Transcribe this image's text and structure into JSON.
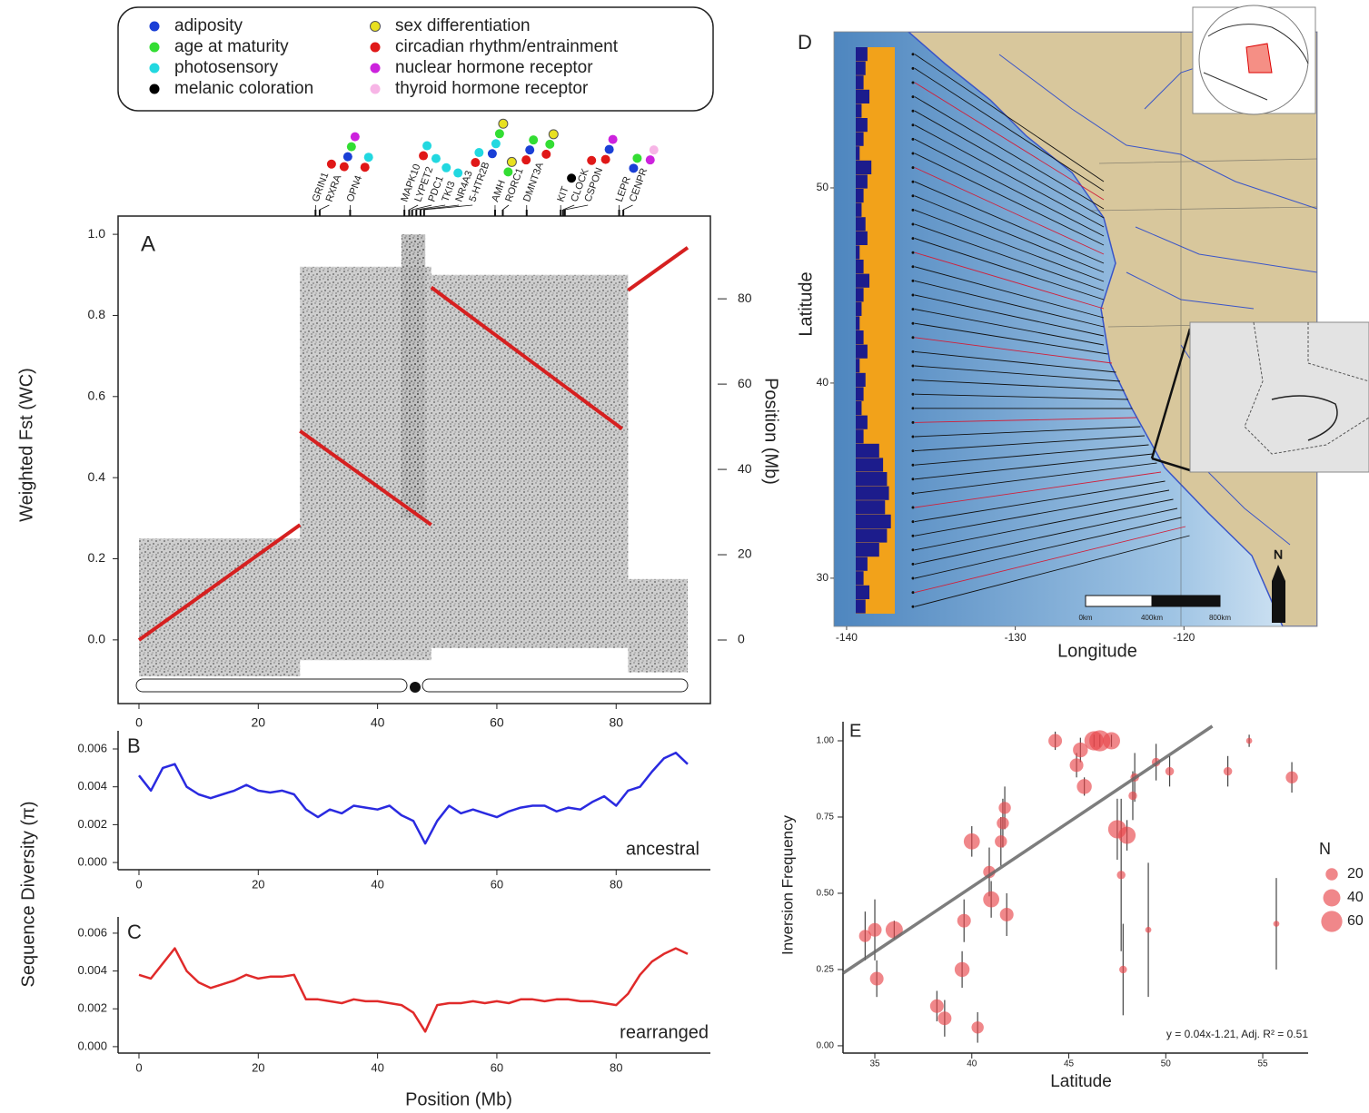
{
  "chart_data": [
    {
      "type": "scatter",
      "label": "A",
      "ylabel": "Weighted Fst (WC)",
      "y2label": "Position (Mb)",
      "xlim": [
        -3.5,
        95.8
      ],
      "xticks": [
        0,
        20,
        40,
        60,
        80
      ],
      "ylim": [
        -0.157,
        1.045
      ],
      "yticks": [
        {
          "value": 0,
          "label": "0.0"
        },
        0.2,
        0.4,
        0.6,
        0.8,
        {
          "value": 1,
          "label": "1.0"
        }
      ],
      "y2lim": [
        -14.9,
        99.4
      ],
      "y2ticks": [
        0,
        20,
        40,
        60,
        80
      ],
      "legend": [
        {
          "name": "adiposity",
          "color": "#1a3fd6"
        },
        {
          "name": "age at maturity",
          "color": "#33dd33"
        },
        {
          "name": "photosensory",
          "color": "#22d8e0"
        },
        {
          "name": "melanic coloration",
          "color": "#000000"
        },
        {
          "name": "sex differentiation",
          "color": "#e8e020"
        },
        {
          "name": "circadian rhythm/entrainment",
          "color": "#e01818"
        },
        {
          "name": "nuclear hormone receptor",
          "color": "#cc22dd"
        },
        {
          "name": "thyroid hormone receptor",
          "color": "#f7b5e6"
        }
      ],
      "genes": [
        {
          "name": "GRIN1",
          "x": 29.6,
          "colors": [
            "#e01818"
          ]
        },
        {
          "name": "RXRA",
          "x": 30.3,
          "colors": [
            "#e01818",
            "#1a3fd6",
            "#33dd33",
            "#cc22dd"
          ]
        },
        {
          "name": "OPN4",
          "x": 35.4,
          "colors": [
            "#e01818",
            "#22d8e0"
          ]
        },
        {
          "name": "MAPK10",
          "x": 44.5,
          "colors": [
            "#e01818",
            "#22d8e0"
          ]
        },
        {
          "name": "LYPET2",
          "x": 45.3,
          "colors": [
            "#22d8e0"
          ]
        },
        {
          "name": "PDC1",
          "x": 45.8,
          "colors": [
            "#22d8e0"
          ]
        },
        {
          "name": "TKI3",
          "x": 46.5,
          "colors": [
            "#22d8e0"
          ]
        },
        {
          "name": "NR4A3",
          "x": 47.2,
          "colors": [
            "#e01818",
            "#22d8e0"
          ]
        },
        {
          "name": "5-HTR2B",
          "x": 47.8,
          "colors": [
            "#1a3fd6",
            "#22d8e0",
            "#33dd33",
            "#e8e020"
          ]
        },
        {
          "name": "AMH",
          "x": 59.7,
          "colors": [
            "#33dd33",
            "#e8e020"
          ]
        },
        {
          "name": "RORC1",
          "x": 61,
          "colors": [
            "#e01818",
            "#1a3fd6",
            "#33dd33"
          ]
        },
        {
          "name": "DMNT3A",
          "x": 65,
          "colors": [
            "#e01818",
            "#33dd33",
            "#e8e020"
          ]
        },
        {
          "name": "KIT",
          "x": 70.7,
          "colors": [
            "#000000"
          ]
        },
        {
          "name": "CLOCK",
          "x": 71.1,
          "colors": [
            "#e01818"
          ]
        },
        {
          "name": "CSPON",
          "x": 71.4,
          "colors": [
            "#e01818",
            "#1a3fd6",
            "#cc22dd"
          ]
        },
        {
          "name": "LEPR",
          "x": 80.5,
          "colors": [
            "#1a3fd6",
            "#33dd33"
          ]
        },
        {
          "name": "CENPR",
          "x": 81.2,
          "colors": [
            "#cc22dd",
            "#f7b5e6"
          ]
        }
      ],
      "fst_clouds": [
        {
          "x": [
            0,
            27
          ],
          "range": [
            -0.09,
            0.25
          ]
        },
        {
          "x": [
            27,
            49
          ],
          "range": [
            -0.05,
            0.92
          ]
        },
        {
          "x": [
            44,
            48
          ],
          "range": [
            0.3,
            1.0
          ]
        },
        {
          "x": [
            49,
            82
          ],
          "range": [
            -0.02,
            0.9
          ]
        },
        {
          "x": [
            82,
            92
          ],
          "range": [
            -0.08,
            0.15
          ]
        }
      ],
      "series": [
        {
          "axis": "y2",
          "color": "#d62020",
          "x": [
            0,
            27,
            null,
            27,
            49,
            null,
            49,
            81,
            null,
            82,
            92
          ],
          "values": [
            0,
            27,
            null,
            49,
            27,
            null,
            82.7,
            49.5,
            null,
            82,
            92
          ]
        }
      ]
    },
    {
      "type": "line",
      "label": "B",
      "ylabel": "Sequence Diversity (π)",
      "annotation": "ancestral",
      "xlim": [
        -3.5,
        95.8
      ],
      "xticks": [
        0,
        20,
        40,
        60,
        80
      ],
      "ylim": [
        -0.00038,
        0.00696
      ],
      "yticks": [
        {
          "value": 0,
          "label": "0.000"
        },
        {
          "value": 0.002,
          "label": "0.002"
        },
        {
          "value": 0.004,
          "label": "0.004"
        },
        {
          "value": 0.006,
          "label": "0.006"
        }
      ],
      "x": [
        0,
        2,
        4,
        6,
        8,
        10,
        12,
        14,
        16,
        18,
        20,
        22,
        24,
        26,
        28,
        30,
        32,
        34,
        36,
        38,
        40,
        42,
        44,
        46,
        48,
        50,
        52,
        54,
        56,
        58,
        60,
        62,
        64,
        66,
        68,
        70,
        72,
        74,
        76,
        78,
        80,
        82,
        84,
        86,
        88,
        90,
        92
      ],
      "series": [
        {
          "color": "#2a2ae0",
          "values": [
            0.0046,
            0.0038,
            0.005,
            0.0052,
            0.004,
            0.0036,
            0.0034,
            0.0036,
            0.0038,
            0.0041,
            0.0038,
            0.0037,
            0.0038,
            0.0036,
            0.0028,
            0.0024,
            0.0028,
            0.0026,
            0.003,
            0.0029,
            0.0028,
            0.003,
            0.0025,
            0.0022,
            0.001,
            0.0022,
            0.003,
            0.0026,
            0.0028,
            0.0026,
            0.0024,
            0.0027,
            0.0029,
            0.003,
            0.003,
            0.0027,
            0.0029,
            0.0028,
            0.0032,
            0.0035,
            0.003,
            0.0038,
            0.004,
            0.0048,
            0.0055,
            0.0058,
            0.0052
          ]
        }
      ]
    },
    {
      "type": "line",
      "label": "C",
      "xlabel": "Position (Mb)",
      "annotation": "rearranged",
      "xlim": [
        -3.5,
        95.8
      ],
      "xticks": [
        0,
        20,
        40,
        60,
        80
      ],
      "ylim": [
        -0.00034,
        0.00686
      ],
      "yticks": [
        {
          "value": 0,
          "label": "0.000"
        },
        {
          "value": 0.002,
          "label": "0.002"
        },
        {
          "value": 0.004,
          "label": "0.004"
        },
        {
          "value": 0.006,
          "label": "0.006"
        }
      ],
      "x": [
        0,
        2,
        4,
        6,
        8,
        10,
        12,
        14,
        16,
        18,
        20,
        22,
        24,
        26,
        28,
        30,
        32,
        34,
        36,
        38,
        40,
        42,
        44,
        46,
        48,
        50,
        52,
        54,
        56,
        58,
        60,
        62,
        64,
        66,
        68,
        70,
        72,
        74,
        76,
        78,
        80,
        82,
        84,
        86,
        88,
        90,
        92
      ],
      "series": [
        {
          "color": "#e02a2a",
          "values": [
            0.0038,
            0.0036,
            0.0044,
            0.0052,
            0.004,
            0.0034,
            0.0031,
            0.0033,
            0.0035,
            0.0038,
            0.0036,
            0.0037,
            0.0037,
            0.0038,
            0.0025,
            0.0025,
            0.0024,
            0.0023,
            0.0025,
            0.0024,
            0.0024,
            0.0023,
            0.0022,
            0.0018,
            0.0008,
            0.0022,
            0.0023,
            0.0023,
            0.0024,
            0.0023,
            0.0024,
            0.0023,
            0.0025,
            0.0025,
            0.0024,
            0.0025,
            0.0025,
            0.0024,
            0.0024,
            0.0023,
            0.0022,
            0.0028,
            0.0038,
            0.0045,
            0.0049,
            0.0052,
            0.0049
          ]
        }
      ]
    },
    {
      "type": "map",
      "label": "D",
      "xlabel": "Longitude",
      "ylabel": "Latitude",
      "xlim": [
        -140.75,
        -112.1
      ],
      "xticks": [
        -140,
        -130,
        -120
      ],
      "ylim": [
        27.53,
        58
      ],
      "yticks": [
        30,
        40,
        50
      ],
      "structure": {
        "colors": [
          "#f2a21a",
          "#1c1c8c"
        ],
        "values": [
          0.3,
          0.25,
          0.2,
          0.35,
          0.15,
          0.3,
          0.2,
          0.1,
          0.4,
          0.3,
          0.2,
          0.15,
          0.25,
          0.3,
          0.1,
          0.2,
          0.35,
          0.2,
          0.15,
          0.1,
          0.2,
          0.3,
          0.1,
          0.25,
          0.2,
          0.15,
          0.3,
          0.2,
          0.6,
          0.7,
          0.8,
          0.85,
          0.75,
          0.9,
          0.8,
          0.6,
          0.3,
          0.2,
          0.35,
          0.25
        ]
      },
      "scale_bar": [
        "0km",
        "400km",
        "800km"
      ],
      "north": "N"
    },
    {
      "type": "scatter",
      "label": "E",
      "xlabel": "Latitude",
      "ylabel": "Inversion Frequency",
      "xlim": [
        33.36,
        57.34
      ],
      "xticks": [
        35,
        40,
        45,
        50,
        55
      ],
      "ylim": [
        -0.024,
        1.0625
      ],
      "yticks": [
        {
          "value": 0,
          "label": "0.00"
        },
        {
          "value": 0.25,
          "label": "0.25"
        },
        {
          "value": 0.5,
          "label": "0.50"
        },
        {
          "value": 0.75,
          "label": "0.75"
        },
        {
          "value": 1,
          "label": "1.00"
        }
      ],
      "color": "#e8474c",
      "x": [
        34.5,
        35,
        35.1,
        36,
        38.2,
        38.6,
        39.5,
        39.6,
        40,
        40.3,
        40.9,
        41,
        41.5,
        41.6,
        41.7,
        41.8,
        44.3,
        45.4,
        45.6,
        45.8,
        46.3,
        46.6,
        47.2,
        47.5,
        47.7,
        47.8,
        48,
        48.3,
        48.4,
        49.1,
        49.5,
        50.2,
        53.2,
        54.3,
        55.7,
        56.5
      ],
      "values": [
        0.36,
        0.38,
        0.22,
        0.38,
        0.13,
        0.09,
        0.25,
        0.41,
        0.67,
        0.06,
        0.57,
        0.48,
        0.67,
        0.73,
        0.78,
        0.43,
        1,
        0.92,
        0.97,
        0.85,
        1,
        1,
        1,
        0.71,
        0.56,
        0.25,
        0.69,
        0.82,
        0.88,
        0.38,
        0.93,
        0.9,
        0.9,
        1,
        0.4,
        0.88
      ],
      "sizes": [
        20,
        25,
        25,
        40,
        25,
        25,
        30,
        25,
        35,
        20,
        20,
        35,
        20,
        20,
        20,
        25,
        25,
        25,
        30,
        30,
        50,
        60,
        40,
        45,
        10,
        8,
        40,
        10,
        10,
        5,
        10,
        10,
        10,
        5,
        5,
        20
      ],
      "errors": [
        0.08,
        0.1,
        0.06,
        0.03,
        0.05,
        0.06,
        0.06,
        0.07,
        0.05,
        0.05,
        0.08,
        0.06,
        0.08,
        0.08,
        0.07,
        0.07,
        0.03,
        0.04,
        0.04,
        0.03,
        0.02,
        0.02,
        0.02,
        0.1,
        0.25,
        0.15,
        0.05,
        0.08,
        0.08,
        0.22,
        0.06,
        0.05,
        0.05,
        0.02,
        0.15,
        0.05
      ],
      "fit": {
        "x": [
          33.36,
          52.4
        ],
        "values": [
          0.238,
          1.048
        ]
      },
      "annotation": "y = 0.04x-1.21, Adj. R² = 0.51",
      "size_legend": {
        "title": "N",
        "values": [
          20,
          40,
          60
        ]
      }
    }
  ]
}
